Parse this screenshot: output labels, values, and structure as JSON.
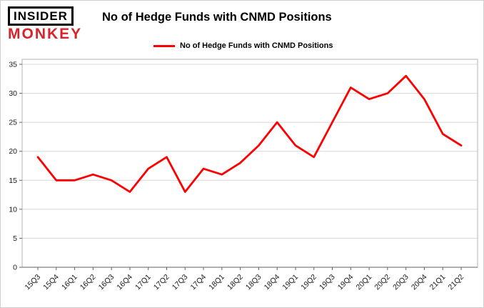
{
  "logo": {
    "top": "INSIDER",
    "bottom": "MONKEY"
  },
  "title": "No of Hedge Funds with CNMD Positions",
  "legend": {
    "label": "No of Hedge Funds with CNMD Positions",
    "color": "#ff0000"
  },
  "colors": {
    "line": "#ff0000",
    "grid": "#d8d8d8",
    "plot_border": "#b3b3b3",
    "axis": "#808080",
    "tick_text": "#1a1a1a",
    "logo_red": "#d8232a"
  },
  "chart_data": {
    "type": "line",
    "title": "No of Hedge Funds with CNMD Positions",
    "categories": [
      "15Q3",
      "15Q4",
      "16Q1",
      "16Q2",
      "16Q3",
      "16Q4",
      "17Q1",
      "17Q2",
      "17Q3",
      "17Q4",
      "18Q1",
      "18Q2",
      "18Q3",
      "18Q4",
      "19Q1",
      "19Q2",
      "19Q3",
      "19Q4",
      "20Q1",
      "20Q2",
      "20Q3",
      "20Q4",
      "21Q1",
      "21Q2"
    ],
    "series": [
      {
        "name": "No of Hedge Funds with CNMD Positions",
        "color": "#ff0000",
        "values": [
          19,
          15,
          15,
          16,
          15,
          13,
          17,
          19,
          13,
          17,
          16,
          18,
          21,
          25,
          21,
          19,
          25,
          31,
          29,
          30,
          33,
          29,
          23,
          21
        ]
      }
    ],
    "xlabel": "",
    "ylabel": "",
    "ylim": [
      0,
      35
    ],
    "yticks": [
      0,
      5,
      10,
      15,
      20,
      25,
      30,
      35
    ],
    "grid": true,
    "legend_position": "top"
  }
}
